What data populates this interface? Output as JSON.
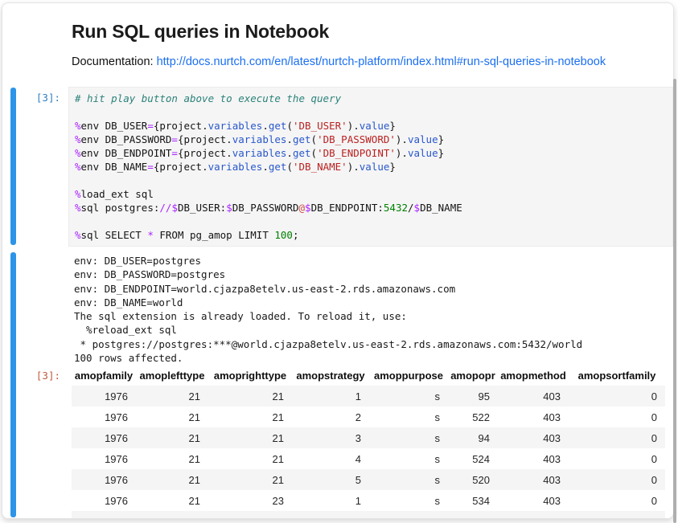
{
  "header": {
    "title": "Run SQL queries in Notebook",
    "doc_label": "Documentation: ",
    "doc_link_text": "http://docs.nurtch.com/en/latest/nurtch-platform/index.html#run-sql-queries-in-notebook"
  },
  "cell": {
    "input_prompt": "[3]:",
    "output_prompt": "[3]:",
    "code_lines": [
      [
        [
          "com",
          "# hit play button above to execute the query"
        ]
      ],
      [],
      [
        [
          "op",
          "%"
        ],
        [
          "pl",
          "env DB_USER"
        ],
        [
          "op",
          "="
        ],
        [
          "pl",
          "{project."
        ],
        [
          "prop",
          "variables"
        ],
        [
          "pl",
          "."
        ],
        [
          "prop",
          "get"
        ],
        [
          "pl",
          "("
        ],
        [
          "str",
          "'DB_USER'"
        ],
        [
          "pl"
        ],
        [
          "pl",
          ")."
        ],
        [
          "prop",
          "value"
        ],
        [
          "pl",
          "}"
        ]
      ],
      [
        [
          "op",
          "%"
        ],
        [
          "pl",
          "env DB_PASSWORD"
        ],
        [
          "op",
          "="
        ],
        [
          "pl",
          "{project."
        ],
        [
          "prop",
          "variables"
        ],
        [
          "pl",
          "."
        ],
        [
          "prop",
          "get"
        ],
        [
          "pl",
          "("
        ],
        [
          "str",
          "'DB_PASSWORD'"
        ],
        [
          "pl",
          ")."
        ],
        [
          "prop",
          "value"
        ],
        [
          "pl",
          "}"
        ]
      ],
      [
        [
          "op",
          "%"
        ],
        [
          "pl",
          "env DB_ENDPOINT"
        ],
        [
          "op",
          "="
        ],
        [
          "pl",
          "{project."
        ],
        [
          "prop",
          "variables"
        ],
        [
          "pl",
          "."
        ],
        [
          "prop",
          "get"
        ],
        [
          "pl",
          "("
        ],
        [
          "str",
          "'DB_ENDPOINT'"
        ],
        [
          "pl",
          ")."
        ],
        [
          "prop",
          "value"
        ],
        [
          "pl",
          "}"
        ]
      ],
      [
        [
          "op",
          "%"
        ],
        [
          "pl",
          "env DB_NAME"
        ],
        [
          "op",
          "="
        ],
        [
          "pl",
          "{project."
        ],
        [
          "prop",
          "variables"
        ],
        [
          "pl",
          "."
        ],
        [
          "prop",
          "get"
        ],
        [
          "pl",
          "("
        ],
        [
          "str",
          "'DB_NAME'"
        ],
        [
          "pl",
          ")."
        ],
        [
          "prop",
          "value"
        ],
        [
          "pl",
          "}"
        ]
      ],
      [],
      [
        [
          "op",
          "%"
        ],
        [
          "pl",
          "load_ext sql"
        ]
      ],
      [
        [
          "op",
          "%"
        ],
        [
          "pl",
          "sql postgres:"
        ],
        [
          "op",
          "//"
        ],
        [
          "op",
          "$"
        ],
        [
          "pl",
          "DB_USER:"
        ],
        [
          "op",
          "$"
        ],
        [
          "pl",
          "DB_PASSWORD"
        ],
        [
          "at",
          "@"
        ],
        [
          "op",
          "$"
        ],
        [
          "pl",
          "DB_ENDPOINT:"
        ],
        [
          "num",
          "5432"
        ],
        [
          "pl",
          "/"
        ],
        [
          "op",
          "$"
        ],
        [
          "pl",
          "DB_NAME"
        ]
      ],
      [],
      [
        [
          "op",
          "%"
        ],
        [
          "pl",
          "sql SELECT "
        ],
        [
          "op",
          "*"
        ],
        [
          "pl",
          " FROM pg_amop LIMIT "
        ],
        [
          "num",
          "100"
        ],
        [
          "pl",
          ";"
        ]
      ]
    ],
    "stdout_lines": [
      "env: DB_USER=postgres",
      "env: DB_PASSWORD=postgres",
      "env: DB_ENDPOINT=world.cjazpa8etelv.us-east-2.rds.amazonaws.com",
      "env: DB_NAME=world",
      "The sql extension is already loaded. To reload it, use:",
      "  %reload_ext sql",
      " * postgres://postgres:***@world.cjazpa8etelv.us-east-2.rds.amazonaws.com:5432/world",
      "100 rows affected."
    ]
  },
  "result_table": {
    "columns": [
      "amopfamily",
      "amoplefttype",
      "amoprighttype",
      "amopstrategy",
      "amoppurpose",
      "amopopr",
      "amopmethod",
      "amopsortfamily"
    ],
    "rows": [
      [
        "1976",
        "21",
        "21",
        "1",
        "s",
        "95",
        "403",
        "0"
      ],
      [
        "1976",
        "21",
        "21",
        "2",
        "s",
        "522",
        "403",
        "0"
      ],
      [
        "1976",
        "21",
        "21",
        "3",
        "s",
        "94",
        "403",
        "0"
      ],
      [
        "1976",
        "21",
        "21",
        "4",
        "s",
        "524",
        "403",
        "0"
      ],
      [
        "1976",
        "21",
        "21",
        "5",
        "s",
        "520",
        "403",
        "0"
      ],
      [
        "1976",
        "21",
        "23",
        "1",
        "s",
        "534",
        "403",
        "0"
      ]
    ]
  },
  "colors": {
    "accent_bar": "#2d95e8",
    "input_prompt": "#307fc1",
    "output_prompt": "#bf5b3d",
    "link": "#1a6ff2",
    "code_bg": "#f5f5f5",
    "table_stripe": "#f5f5f5",
    "syntax": {
      "comment": "#2b827a",
      "operator": "#aa22ff",
      "string": "#ba2121",
      "number": "#008000",
      "property": "#2857cc",
      "at": "#cf4b41"
    }
  }
}
